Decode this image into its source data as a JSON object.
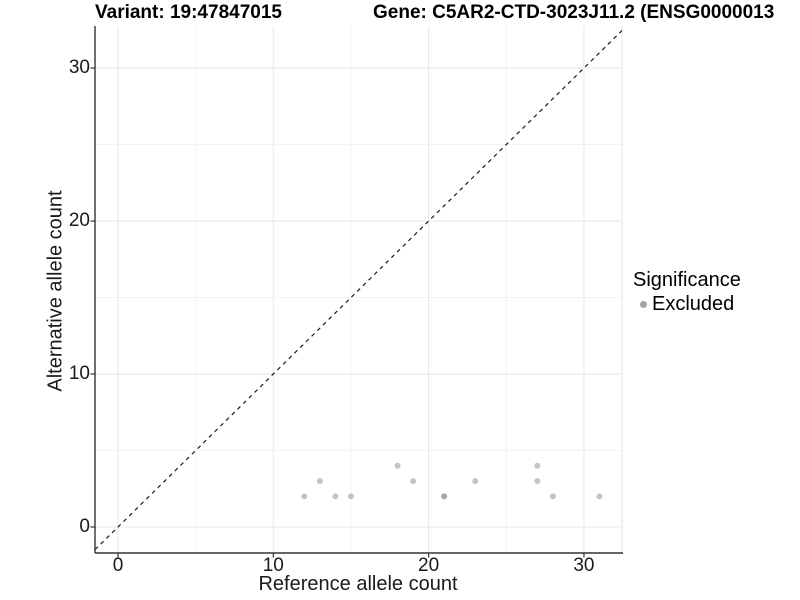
{
  "header": {
    "variant_title": "Variant: 19:47847015",
    "gene_title": "Gene: C5AR2-CTD-3023J11.2 (ENSG0000013"
  },
  "chart_data": {
    "type": "scatter",
    "title_left": "Variant: 19:47847015",
    "title_right": "Gene: C5AR2-CTD-3023J11.2 (ENSG0000013",
    "xlabel": "Reference allele count",
    "ylabel": "Alternative allele count",
    "xlim": [
      -1.48,
      32.45
    ],
    "ylim": [
      -1.7,
      32.75
    ],
    "x_ticks": [
      0,
      10,
      20,
      30
    ],
    "y_ticks": [
      0,
      10,
      20,
      30
    ],
    "x_minor_ticks": [
      5,
      15,
      25
    ],
    "y_minor_ticks": [
      5,
      15,
      25
    ],
    "grid": true,
    "reference_line": {
      "kind": "identity-diagonal",
      "style": "dashed",
      "color": "#1a1a1a"
    },
    "series": [
      {
        "name": "Excluded",
        "color": "#8f8f8f",
        "opacity": 0.53,
        "points": [
          {
            "x": 12,
            "y": 2
          },
          {
            "x": 13,
            "y": 3
          },
          {
            "x": 14,
            "y": 2
          },
          {
            "x": 15,
            "y": 2
          },
          {
            "x": 18,
            "y": 4
          },
          {
            "x": 19,
            "y": 3
          },
          {
            "x": 21,
            "y": 2
          },
          {
            "x": 21,
            "y": 2
          },
          {
            "x": 23,
            "y": 3
          },
          {
            "x": 27,
            "y": 4
          },
          {
            "x": 27,
            "y": 3
          },
          {
            "x": 28,
            "y": 2
          },
          {
            "x": 31,
            "y": 2
          }
        ]
      }
    ],
    "legend": {
      "title": "Significance",
      "position": "right",
      "items": [
        {
          "label": "Excluded",
          "color": "#a4a4a4"
        }
      ]
    },
    "colors": {
      "major_grid": "#e8e8e8",
      "minor_grid": "#f3f3f3",
      "axis_line": "#333333",
      "panel_right_border": "#e3e3e3",
      "point": "#8f8f8f"
    }
  }
}
